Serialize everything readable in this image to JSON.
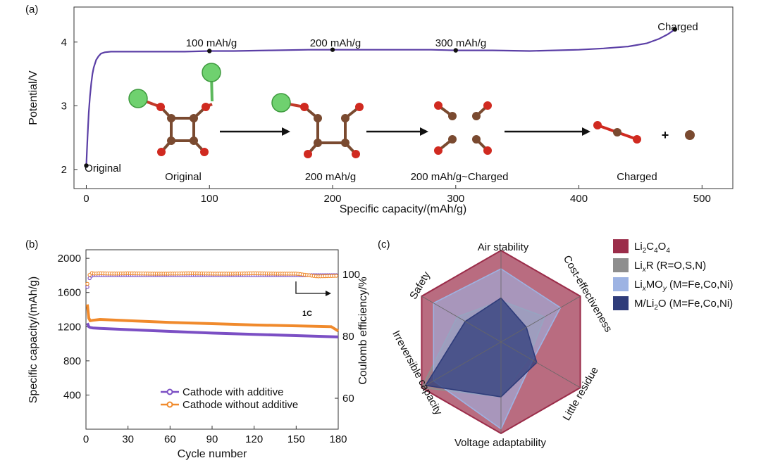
{
  "panel_a": {
    "label": "(a)",
    "capacity_labels": [
      "100 mAh/g",
      "200 mAh/g",
      "300 mAh/g"
    ],
    "charged_label": "Charged",
    "original_label": "Original",
    "stage_labels": [
      "Original",
      "200 mAh/g",
      "200 mAh/g~Charged",
      "Charged"
    ],
    "plus_sign": "+"
  },
  "panel_b": {
    "label": "(b)",
    "rate_label": "1C"
  },
  "panel_c": {
    "label": "(c)"
  },
  "chart_data": [
    {
      "type": "line",
      "panel": "(a)",
      "xlabel": "Specific capacity/(mAh/g)",
      "ylabel": "Potential/V",
      "xlim": [
        -10,
        525
      ],
      "ylim": [
        1.7,
        4.55
      ],
      "xticks": [
        0,
        100,
        200,
        300,
        400,
        500
      ],
      "yticks": [
        2,
        3,
        4
      ],
      "color": "#5b3fa6",
      "series": [
        {
          "x": [
            0,
            0.5,
            1,
            2,
            3,
            4,
            5,
            6,
            8,
            10,
            12,
            15,
            20,
            40,
            60,
            80,
            100,
            120,
            150,
            180,
            200,
            220,
            250,
            280,
            300,
            330,
            360,
            380,
            400,
            420,
            440,
            455,
            465,
            472,
            478
          ],
          "y": [
            2.06,
            2.3,
            2.5,
            2.9,
            3.15,
            3.35,
            3.5,
            3.6,
            3.72,
            3.78,
            3.82,
            3.84,
            3.85,
            3.85,
            3.85,
            3.85,
            3.86,
            3.86,
            3.87,
            3.88,
            3.88,
            3.88,
            3.88,
            3.88,
            3.87,
            3.87,
            3.86,
            3.87,
            3.88,
            3.9,
            3.93,
            3.98,
            4.05,
            4.12,
            4.2
          ]
        }
      ],
      "marked_points": [
        {
          "x": 0,
          "y": 2.06
        },
        {
          "x": 100,
          "y": 3.86
        },
        {
          "x": 200,
          "y": 3.88
        },
        {
          "x": 300,
          "y": 3.87
        },
        {
          "x": 478,
          "y": 4.2
        }
      ]
    },
    {
      "type": "line",
      "panel": "(b)",
      "xlabel": "Cycle number",
      "ylabel": "Specific capacity/(mAh/g)",
      "y2label": "Coulomb efficiency/%",
      "xlim": [
        0,
        180
      ],
      "ylim": [
        0,
        2100
      ],
      "y2lim": [
        50,
        108
      ],
      "xticks": [
        0,
        30,
        60,
        90,
        120,
        150,
        180
      ],
      "yticks": [
        400,
        800,
        1200,
        1600,
        2000
      ],
      "y2ticks": [
        60,
        80,
        100
      ],
      "legend_position": "bottom-center",
      "series": [
        {
          "name": "Cathode with additive",
          "color": "#7b4fc4",
          "axis": "left",
          "x": [
            1,
            2,
            3,
            5,
            10,
            30,
            60,
            90,
            120,
            150,
            180
          ],
          "y": [
            1240,
            1200,
            1190,
            1185,
            1180,
            1165,
            1145,
            1125,
            1110,
            1095,
            1080
          ]
        },
        {
          "name": "Cathode without additive",
          "color": "#f08a2c",
          "axis": "left",
          "x": [
            1,
            2,
            3,
            5,
            10,
            30,
            60,
            90,
            120,
            150,
            175,
            180
          ],
          "y": [
            1460,
            1300,
            1270,
            1275,
            1285,
            1270,
            1250,
            1235,
            1220,
            1210,
            1200,
            1150
          ]
        },
        {
          "name": "Coulomb efficiency (with additive)",
          "color": "#7b4fc4",
          "axis": "right",
          "marker": "open-circle",
          "x": [
            1,
            3,
            6,
            10,
            20,
            30,
            45,
            60,
            75,
            90,
            105,
            120,
            135,
            150,
            165,
            180
          ],
          "y": [
            96,
            99.5,
            99.8,
            99.8,
            99.8,
            99.8,
            99.8,
            99.8,
            99.8,
            99.8,
            99.8,
            99.8,
            99.8,
            99.8,
            99.8,
            99.8
          ]
        },
        {
          "name": "Coulomb efficiency (without additive)",
          "color": "#f08a2c",
          "axis": "right",
          "marker": "open-circle",
          "x": [
            1,
            3,
            6,
            10,
            20,
            30,
            45,
            60,
            75,
            90,
            105,
            120,
            135,
            150,
            165,
            180
          ],
          "y": [
            97,
            100.6,
            100.3,
            100.4,
            100.3,
            100.4,
            100.3,
            100.3,
            100.4,
            100.3,
            100.3,
            100.4,
            100.3,
            100.3,
            99.4,
            99.6
          ]
        }
      ]
    },
    {
      "type": "radar",
      "panel": "(c)",
      "axes": [
        "Air stability",
        "Cost-effectiveness",
        "Little residue",
        "Voltage adaptability",
        "Irreversible capacity",
        "Safety"
      ],
      "max": 1.0,
      "legend_position": "right",
      "series": [
        {
          "name": "Li2C4O4",
          "color": "#9b2d4a",
          "values": [
            1.0,
            1.0,
            1.0,
            1.0,
            1.0,
            1.0
          ]
        },
        {
          "name": "LixR (R=O,S,N)",
          "color": "#8e8e8e",
          "values": [
            0.45,
            0.55,
            0.35,
            0.6,
            1.0,
            0.55
          ]
        },
        {
          "name": "LixMOy (M=Fe,Co,Ni)",
          "color": "#9db3e3",
          "values": [
            0.8,
            0.75,
            0.4,
            0.95,
            0.85,
            0.85
          ]
        },
        {
          "name": "M/Li2O (M=Fe,Co,Ni)",
          "color": "#2f3c7a",
          "values": [
            0.48,
            0.32,
            0.45,
            0.6,
            0.95,
            0.45
          ]
        }
      ],
      "legend_labels": [
        [
          "Li",
          "2",
          "C",
          "4",
          "O",
          "4"
        ],
        [
          "Li",
          "x",
          "R (R=O,S,N)"
        ],
        [
          "Li",
          "x",
          "MO",
          "y",
          " (M=Fe,Co,Ni)"
        ],
        [
          "M/Li",
          "2",
          "O (M=Fe,Co,Ni)"
        ]
      ]
    }
  ]
}
